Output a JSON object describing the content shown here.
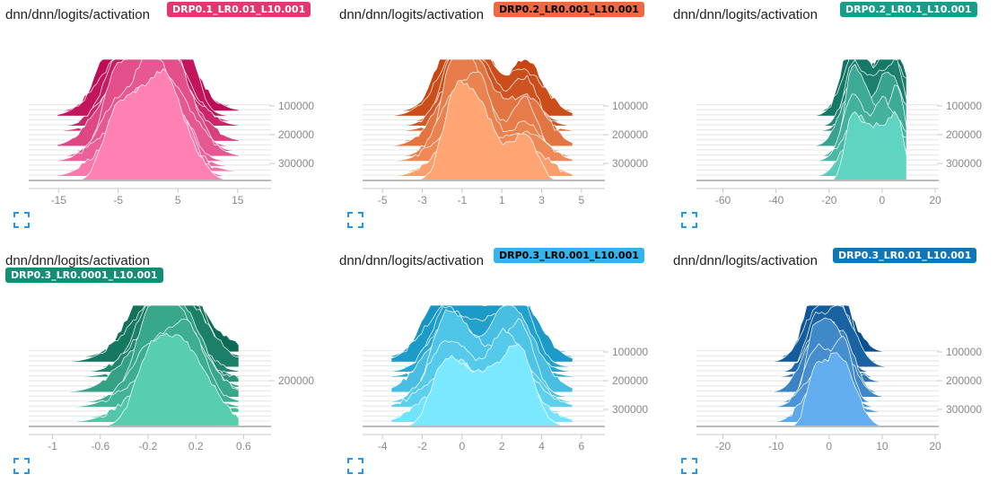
{
  "panels": [
    {
      "title": "dnn/dnn/logits/activation",
      "run": "DRP0.1_LR0.01_L10.001",
      "badge_color": "#e7356f",
      "badge_text_color": "#ffffff",
      "badge_position": "inline",
      "expand_icon": "fullscreen-icon",
      "chart_data": {
        "type": "histogram-ridgeline",
        "color_dark": "#b8054f",
        "color_light": "#ff80b2",
        "xlim": [
          -20,
          20
        ],
        "x_ticks": [
          -15,
          -5,
          5,
          15
        ],
        "y_ticks": [
          100000,
          200000,
          300000
        ],
        "step_range": [
          0,
          350000
        ],
        "peaks": [
          -6,
          -2,
          0,
          3,
          6
        ],
        "spread": 5.5
      }
    },
    {
      "title": "dnn/dnn/logits/activation",
      "run": "DRP0.2_LR0.001_L10.001",
      "badge_color": "#f5683d",
      "badge_text_color": "#000000",
      "badge_position": "inline",
      "expand_icon": "fullscreen-icon",
      "chart_data": {
        "type": "histogram-ridgeline",
        "color_dark": "#c33f0c",
        "color_light": "#ffa574",
        "xlim": [
          -6,
          6
        ],
        "x_ticks": [
          -5,
          -3,
          -1,
          1,
          3,
          5
        ],
        "y_ticks": [
          100000,
          200000,
          300000
        ],
        "step_range": [
          0,
          350000
        ],
        "peaks": [
          -1.5,
          -0.8,
          0,
          2.2
        ],
        "spread": 1.6
      }
    },
    {
      "title": "dnn/dnn/logits/activation",
      "run": "DRP0.2_LR0.1_L10.001",
      "badge_color": "#149f88",
      "badge_text_color": "#ffffff",
      "badge_position": "inline",
      "expand_icon": "fullscreen-icon",
      "chart_data": {
        "type": "histogram-ridgeline",
        "color_dark": "#0b6b5b",
        "color_light": "#5fd4c0",
        "xlim": [
          -70,
          20
        ],
        "x_ticks": [
          -60,
          -40,
          -20,
          0,
          20
        ],
        "y_ticks": [
          100000,
          200000,
          300000
        ],
        "step_range": [
          0,
          350000
        ],
        "peaks": [
          -12,
          -8,
          0,
          6
        ],
        "spread": 7
      }
    },
    {
      "title": "dnn/dnn/logits/activation",
      "run": "DRP0.3_LR0.0001_L10.001",
      "badge_color": "#0f8f73",
      "badge_text_color": "#ffffff",
      "badge_position": "below",
      "expand_icon": "fullscreen-icon",
      "chart_data": {
        "type": "histogram-ridgeline",
        "color_dark": "#0d6b55",
        "color_light": "#57cfae",
        "xlim": [
          -1.2,
          0.8
        ],
        "x_ticks": [
          -1.0,
          -0.6,
          -0.2,
          0.2,
          0.6
        ],
        "y_ticks": [
          200000
        ],
        "step_range": [
          0,
          350000
        ],
        "peaks": [
          -0.2,
          0,
          0.15
        ],
        "spread": 0.35
      }
    },
    {
      "title": "dnn/dnn/logits/activation",
      "run": "DRP0.3_LR0.001_L10.001",
      "badge_color": "#33b4ea",
      "badge_text_color": "#000000",
      "badge_position": "inline",
      "expand_icon": "fullscreen-icon",
      "chart_data": {
        "type": "histogram-ridgeline",
        "color_dark": "#0d8fc0",
        "color_light": "#7ae8ff",
        "xlim": [
          -5,
          7
        ],
        "x_ticks": [
          -4,
          -2,
          0,
          2,
          4,
          6
        ],
        "y_ticks": [
          100000,
          200000,
          300000
        ],
        "step_range": [
          0,
          350000
        ],
        "peaks": [
          -1,
          0,
          2,
          3
        ],
        "spread": 1.8
      }
    },
    {
      "title": "dnn/dnn/logits/activation",
      "run": "DRP0.3_LR0.01_L10.001",
      "badge_color": "#1276b6",
      "badge_text_color": "#ffffff",
      "badge_position": "inline",
      "expand_icon": "fullscreen-icon",
      "chart_data": {
        "type": "histogram-ridgeline",
        "color_dark": "#08508f",
        "color_light": "#63aef0",
        "xlim": [
          -25,
          20
        ],
        "x_ticks": [
          -20,
          -10,
          0,
          10,
          20
        ],
        "y_ticks": [
          100000,
          200000,
          300000
        ],
        "step_range": [
          0,
          350000
        ],
        "peaks": [
          -3,
          0,
          3
        ],
        "spread": 4
      }
    }
  ]
}
